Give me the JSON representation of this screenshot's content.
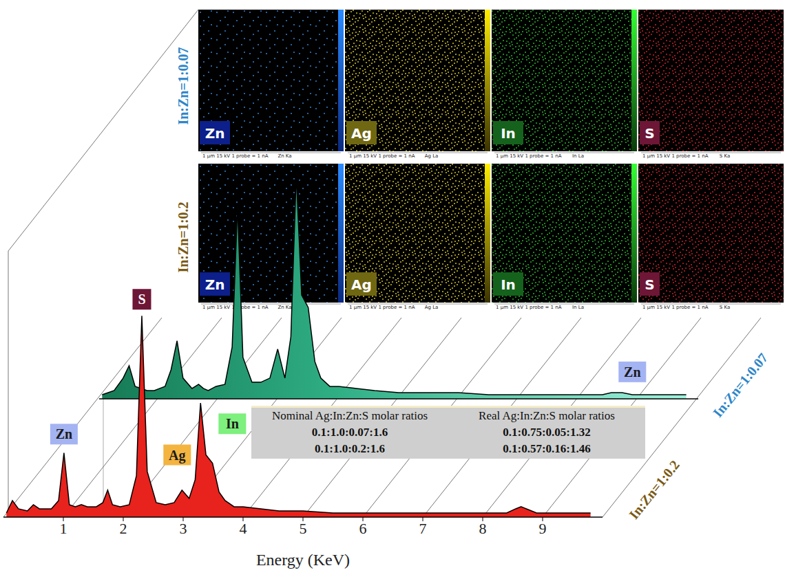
{
  "chart_data": {
    "type": "area",
    "x_label": "Energy (KeV)",
    "x": [
      0.05,
      0.15,
      0.25,
      0.4,
      0.5,
      0.6,
      0.8,
      0.92,
      1.01,
      1.1,
      1.2,
      1.3,
      1.4,
      1.55,
      1.66,
      1.74,
      1.82,
      1.95,
      2.1,
      2.22,
      2.31,
      2.4,
      2.55,
      2.7,
      2.85,
      2.98,
      3.1,
      3.2,
      3.29,
      3.38,
      3.49,
      3.6,
      3.7,
      3.85,
      4.0,
      4.3,
      4.6,
      5.0,
      5.5,
      6.0,
      6.5,
      7.0,
      7.5,
      8.0,
      8.4,
      8.55,
      8.64,
      8.73,
      8.9,
      9.3,
      9.8
    ],
    "xlim": [
      0,
      10
    ],
    "xticks": [
      1,
      2,
      3,
      4,
      5,
      6,
      7,
      8,
      9
    ],
    "ylim": [
      0,
      120
    ],
    "tick_labels": "x",
    "series": [
      {
        "name": "In:Zn=1:0.2",
        "color": "#e8221c",
        "values": [
          2,
          8,
          4,
          3,
          6,
          4,
          4,
          8,
          31,
          6,
          5,
          6,
          5,
          5,
          7,
          13,
          6,
          5,
          6,
          20,
          97,
          22,
          7,
          6,
          7,
          13,
          9,
          18,
          55,
          30,
          26,
          12,
          8,
          5,
          5,
          4,
          3,
          3,
          2,
          2,
          2,
          2,
          2,
          2,
          2,
          4,
          5,
          4,
          2,
          2,
          2
        ]
      },
      {
        "name": "In:Zn=1:0.07",
        "color": "#2fae84",
        "values": [
          2,
          3,
          4,
          10,
          16,
          6,
          4,
          4,
          5,
          6,
          14,
          28,
          10,
          5,
          7,
          5,
          4,
          6,
          7,
          25,
          93,
          20,
          8,
          8,
          10,
          24,
          10,
          30,
          108,
          50,
          44,
          18,
          10,
          6,
          6,
          5,
          4,
          3,
          3,
          3,
          2,
          2,
          2,
          2,
          2,
          3,
          3,
          3,
          2,
          2,
          2
        ]
      }
    ],
    "annotations": [
      {
        "text": "Zn",
        "x": 1.01,
        "y": 40,
        "series": "In:Zn=1:0.2",
        "color": "#a4b3f2"
      },
      {
        "text": "S",
        "x": 2.31,
        "y": 105,
        "series": "In:Zn=1:0.2",
        "color": "#6d1636"
      },
      {
        "text": "Ag",
        "x": 2.9,
        "y": 30,
        "series": "In:Zn=1:0.2",
        "color": "#f3b440"
      },
      {
        "text": "In",
        "x": 3.82,
        "y": 45,
        "series": "In:Zn=1:0.2",
        "color": "#7df07d"
      },
      {
        "text": "Zn",
        "x": 8.9,
        "y": 13,
        "series": "In:Zn=1:0.07",
        "color": "#a4b3f2"
      }
    ]
  },
  "maps": {
    "elements": [
      "Zn",
      "Ag",
      "In",
      "S"
    ],
    "lines": [
      "Zn Ka",
      "Ag La",
      "In La",
      "S Ka"
    ],
    "scale_bar": "1 μm",
    "conditions": "15 kV",
    "probe": "1 probe = 1 nA"
  },
  "table": {
    "header": [
      "Nominal Ag:In:Zn:S molar ratios",
      "Real Ag:In:Zn:S molar ratios"
    ],
    "rows": [
      [
        "0.1:1.0:0.07:1.6",
        "0.1:0.75:0.05:1.32"
      ],
      [
        "0.1:1.0:0.2:1.6",
        "0.1:0.57:0.16:1.46"
      ]
    ]
  }
}
